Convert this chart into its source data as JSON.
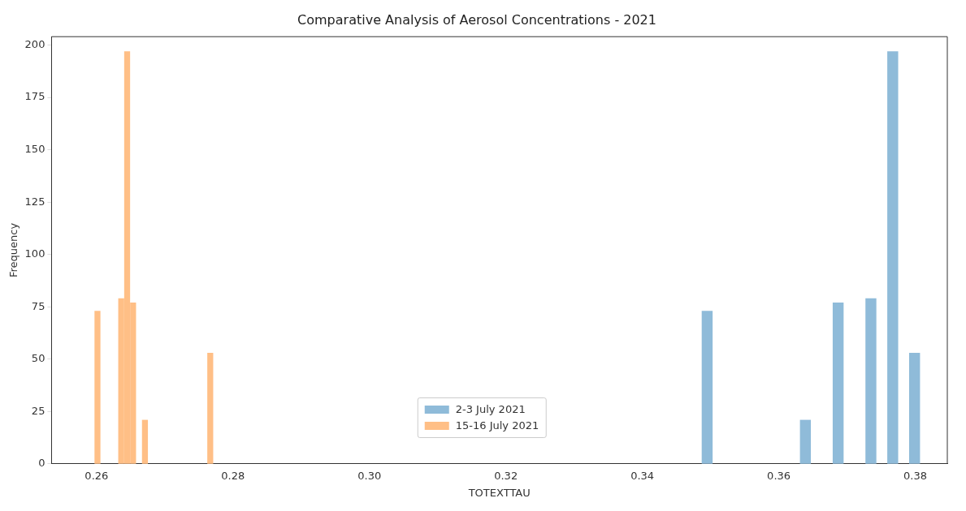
{
  "chart_data": {
    "type": "histogram",
    "title": "Comparative Analysis of Aerosol Concentrations - 2021",
    "xlabel": "TOTEXTTAU",
    "ylabel": "Frequency",
    "bins": [
      0.2597,
      0.26057,
      0.26318,
      0.26405,
      0.26492,
      0.26579,
      0.26666,
      0.26753,
      0.27623,
      0.2771,
      0.3487,
      0.3503,
      0.3631,
      0.3647,
      0.3679,
      0.3695,
      0.3727,
      0.3743,
      0.3759,
      0.3775,
      0.3791,
      0.3807
    ],
    "series": [
      {
        "name": "2-3 July 2021",
        "color": "#8fbbd9",
        "values": [
          0,
          0,
          0,
          0,
          0,
          0,
          0,
          0,
          0,
          0,
          73,
          0,
          21,
          0,
          77,
          0,
          79,
          0,
          197,
          0,
          53
        ]
      },
      {
        "name": "15-16 July 2021",
        "color": "#ffbf86",
        "values": [
          73,
          0,
          79,
          197,
          77,
          0,
          21,
          0,
          53,
          0,
          0,
          0,
          0,
          0,
          0,
          0,
          0,
          0,
          0,
          0,
          0
        ]
      }
    ],
    "xlim": [
      0.2534,
      0.3847
    ],
    "xticks": [
      0.26,
      0.28,
      {
        "value": 0.3,
        "label": "0.30"
      },
      0.32,
      0.34,
      0.36,
      0.38
    ],
    "ylim": [
      0,
      204
    ],
    "yticks": [
      0,
      25,
      50,
      75,
      100,
      125,
      150,
      175,
      200
    ],
    "grid": false,
    "legend": "bottom"
  }
}
